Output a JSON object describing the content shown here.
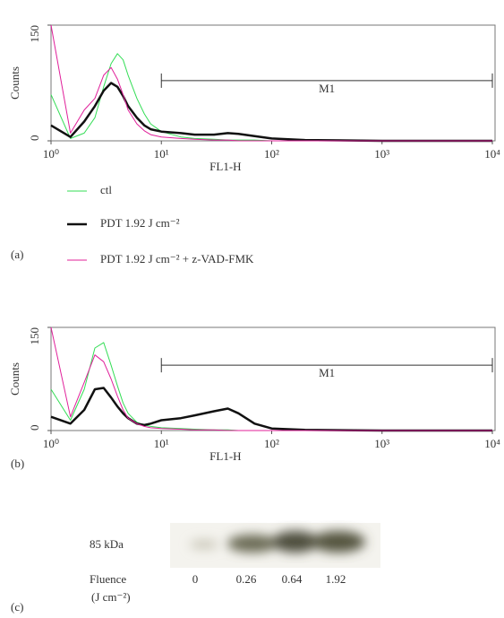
{
  "chart_data": [
    {
      "type": "line",
      "panel_label": "(a)",
      "x_label": "FL1-H",
      "y_label": "Counts",
      "xscale": "log",
      "xlim": [
        1,
        10000
      ],
      "ylim": [
        0,
        150
      ],
      "xticks": [
        {
          "value": 1,
          "label": "10⁰"
        },
        {
          "value": 10,
          "label": "10¹"
        },
        {
          "value": 100,
          "label": "10²"
        },
        {
          "value": 1000,
          "label": "10³"
        },
        {
          "value": 10000,
          "label": "10⁴"
        }
      ],
      "yticks": [
        0,
        150
      ],
      "gate": {
        "label": "M1",
        "start": 10,
        "end": 10000,
        "y": 78
      },
      "x": [
        1,
        1.5,
        2,
        2.5,
        3,
        3.5,
        4,
        4.5,
        5,
        6,
        7,
        8,
        10,
        15,
        20,
        30,
        40,
        50,
        70,
        100,
        200,
        1000,
        10000
      ],
      "series": [
        {
          "name": "ctl",
          "color": "#33dd55",
          "width": 1,
          "values": [
            60,
            3,
            10,
            30,
            70,
            100,
            113,
            105,
            85,
            55,
            35,
            22,
            12,
            5,
            3,
            2,
            1,
            1,
            1,
            0,
            0,
            0,
            0
          ]
        },
        {
          "name": "PDT  1.92 J cm⁻²",
          "color": "#111111",
          "width": 2.5,
          "values": [
            20,
            5,
            25,
            45,
            65,
            75,
            70,
            58,
            45,
            30,
            20,
            15,
            12,
            10,
            8,
            8,
            10,
            9,
            6,
            3,
            1,
            0,
            0
          ]
        },
        {
          "name": "PDT 1.92 J cm⁻² + z-VAD-FMK",
          "color": "#e0209a",
          "width": 1,
          "values": [
            150,
            10,
            40,
            55,
            85,
            95,
            80,
            60,
            40,
            22,
            13,
            8,
            5,
            3,
            2,
            1,
            1,
            0,
            0,
            0,
            0,
            0,
            0
          ]
        }
      ]
    },
    {
      "type": "line",
      "panel_label": "(b)",
      "x_label": "FL1-H",
      "y_label": "Counts",
      "xscale": "log",
      "xlim": [
        1,
        10000
      ],
      "ylim": [
        0,
        150
      ],
      "xticks": [
        {
          "value": 1,
          "label": "10⁰"
        },
        {
          "value": 10,
          "label": "10¹"
        },
        {
          "value": 100,
          "label": "10²"
        },
        {
          "value": 1000,
          "label": "10³"
        },
        {
          "value": 10000,
          "label": "10⁴"
        }
      ],
      "yticks": [
        0,
        150
      ],
      "gate": {
        "label": "M1",
        "start": 10,
        "end": 10000,
        "y": 95
      },
      "x": [
        1,
        1.5,
        2,
        2.5,
        3,
        3.5,
        4,
        4.5,
        5,
        6,
        7,
        8,
        10,
        15,
        20,
        30,
        40,
        50,
        70,
        100,
        200,
        1000,
        10000
      ],
      "series": [
        {
          "color": "#33dd55",
          "width": 1,
          "values": [
            60,
            15,
            60,
            120,
            128,
            95,
            65,
            40,
            25,
            12,
            8,
            6,
            4,
            3,
            2,
            1,
            1,
            0,
            0,
            0,
            0,
            0,
            0
          ]
        },
        {
          "color": "#111111",
          "width": 2.5,
          "values": [
            20,
            10,
            30,
            60,
            62,
            48,
            35,
            25,
            18,
            10,
            8,
            10,
            15,
            18,
            22,
            28,
            32,
            25,
            10,
            3,
            1,
            0,
            0
          ]
        },
        {
          "color": "#e0209a",
          "width": 1,
          "values": [
            150,
            20,
            70,
            110,
            100,
            75,
            50,
            30,
            18,
            10,
            6,
            4,
            3,
            2,
            1,
            1,
            0,
            0,
            0,
            0,
            0,
            0,
            0
          ]
        }
      ]
    }
  ],
  "blot": {
    "panel_label": "(c)",
    "band_label": "85 kDa",
    "fluence_label": "Fluence",
    "fluence_unit": "(J cm⁻²)",
    "lanes": [
      "0",
      "0.26",
      "0.64",
      "1.92"
    ]
  }
}
